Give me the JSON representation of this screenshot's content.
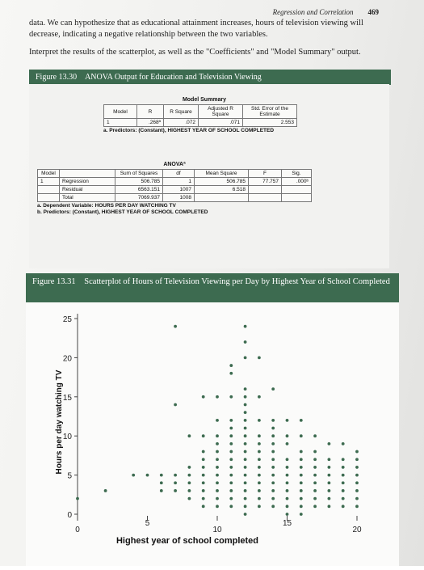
{
  "header": {
    "running_title": "Regression and Correlation",
    "page_number": "469"
  },
  "body": {
    "p1": "data. We can hypothesize that as educational attainment increases, hours of television viewing will decrease, indicating a negative relationship between the two variables.",
    "p2": "Interpret the results of the scatterplot, as well as the \"Coefficients\" and \"Model Summary\" output."
  },
  "figure1": {
    "label": "Figure 13.30",
    "caption": "ANOVA Output for Education and Television Viewing"
  },
  "model_summary": {
    "title": "Model Summary",
    "headers": [
      "Model",
      "R",
      "R Square",
      "Adjusted R Square",
      "Std. Error of the Estimate"
    ],
    "row": [
      "1",
      ".268ª",
      ".072",
      ".071",
      "2.553"
    ],
    "footnote": "a. Predictors: (Constant), HIGHEST YEAR OF SCHOOL COMPLETED"
  },
  "anova": {
    "title": "ANOVAª",
    "headers": [
      "Model",
      "",
      "Sum of Squares",
      "df",
      "Mean Square",
      "F",
      "Sig."
    ],
    "rows": [
      [
        "1",
        "Regression",
        "506.785",
        "1",
        "506.785",
        "77.757",
        ".000ᵇ"
      ],
      [
        "",
        "Residual",
        "6563.151",
        "1007",
        "6.518",
        "",
        ""
      ],
      [
        "",
        "Total",
        "7069.937",
        "1008",
        "",
        "",
        ""
      ]
    ],
    "footnote_a": "a. Dependent Variable: HOURS PER DAY WATCHING TV",
    "footnote_b": "b. Predictors: (Constant), HIGHEST YEAR OF SCHOOL COMPLETED"
  },
  "figure2": {
    "label": "Figure 13.31",
    "caption": "Scatterplot of Hours of Television Viewing per Day by Highest Year of School Completed"
  },
  "chart_data": {
    "type": "scatter",
    "title": "",
    "xlabel": "Highest year of school completed",
    "ylabel": "Hours per day watching TV",
    "xlim": [
      0,
      20
    ],
    "ylim": [
      0,
      25
    ],
    "x_ticks": [
      0,
      5,
      10,
      15,
      20
    ],
    "y_ticks": [
      0,
      5,
      10,
      15,
      20,
      25
    ],
    "grid": false,
    "point_color": "#3d6b50",
    "points": [
      [
        0,
        2
      ],
      [
        2,
        3
      ],
      [
        4,
        5
      ],
      [
        5,
        5
      ],
      [
        6,
        3
      ],
      [
        6,
        4
      ],
      [
        6,
        5
      ],
      [
        7,
        14
      ],
      [
        7,
        24
      ],
      [
        7,
        3
      ],
      [
        7,
        4
      ],
      [
        7,
        5
      ],
      [
        8,
        2
      ],
      [
        8,
        3
      ],
      [
        8,
        4
      ],
      [
        8,
        5
      ],
      [
        8,
        6
      ],
      [
        8,
        10
      ],
      [
        9,
        1
      ],
      [
        9,
        2
      ],
      [
        9,
        3
      ],
      [
        9,
        4
      ],
      [
        9,
        5
      ],
      [
        9,
        6
      ],
      [
        9,
        7
      ],
      [
        9,
        8
      ],
      [
        9,
        10
      ],
      [
        9,
        15
      ],
      [
        10,
        1
      ],
      [
        10,
        2
      ],
      [
        10,
        3
      ],
      [
        10,
        4
      ],
      [
        10,
        5
      ],
      [
        10,
        6
      ],
      [
        10,
        7
      ],
      [
        10,
        8
      ],
      [
        10,
        9
      ],
      [
        10,
        10
      ],
      [
        10,
        12
      ],
      [
        10,
        15
      ],
      [
        11,
        1
      ],
      [
        11,
        2
      ],
      [
        11,
        3
      ],
      [
        11,
        4
      ],
      [
        11,
        5
      ],
      [
        11,
        6
      ],
      [
        11,
        7
      ],
      [
        11,
        8
      ],
      [
        11,
        9
      ],
      [
        11,
        10
      ],
      [
        11,
        11
      ],
      [
        11,
        12
      ],
      [
        11,
        15
      ],
      [
        11,
        18
      ],
      [
        11,
        19
      ],
      [
        12,
        0
      ],
      [
        12,
        1
      ],
      [
        12,
        2
      ],
      [
        12,
        3
      ],
      [
        12,
        4
      ],
      [
        12,
        5
      ],
      [
        12,
        6
      ],
      [
        12,
        7
      ],
      [
        12,
        8
      ],
      [
        12,
        9
      ],
      [
        12,
        10
      ],
      [
        12,
        11
      ],
      [
        12,
        12
      ],
      [
        12,
        13
      ],
      [
        12,
        14
      ],
      [
        12,
        15
      ],
      [
        12,
        16
      ],
      [
        12,
        20
      ],
      [
        12,
        22
      ],
      [
        12,
        24
      ],
      [
        13,
        1
      ],
      [
        13,
        2
      ],
      [
        13,
        3
      ],
      [
        13,
        4
      ],
      [
        13,
        5
      ],
      [
        13,
        6
      ],
      [
        13,
        7
      ],
      [
        13,
        8
      ],
      [
        13,
        9
      ],
      [
        13,
        10
      ],
      [
        13,
        12
      ],
      [
        13,
        15
      ],
      [
        13,
        20
      ],
      [
        14,
        1
      ],
      [
        14,
        2
      ],
      [
        14,
        3
      ],
      [
        14,
        4
      ],
      [
        14,
        5
      ],
      [
        14,
        6
      ],
      [
        14,
        7
      ],
      [
        14,
        8
      ],
      [
        14,
        9
      ],
      [
        14,
        10
      ],
      [
        14,
        11
      ],
      [
        14,
        12
      ],
      [
        14,
        16
      ],
      [
        15,
        0
      ],
      [
        15,
        1
      ],
      [
        15,
        2
      ],
      [
        15,
        3
      ],
      [
        15,
        4
      ],
      [
        15,
        5
      ],
      [
        15,
        6
      ],
      [
        15,
        7
      ],
      [
        15,
        9
      ],
      [
        15,
        10
      ],
      [
        15,
        12
      ],
      [
        16,
        0
      ],
      [
        16,
        1
      ],
      [
        16,
        2
      ],
      [
        16,
        3
      ],
      [
        16,
        4
      ],
      [
        16,
        5
      ],
      [
        16,
        6
      ],
      [
        16,
        7
      ],
      [
        16,
        8
      ],
      [
        16,
        10
      ],
      [
        16,
        12
      ],
      [
        17,
        1
      ],
      [
        17,
        2
      ],
      [
        17,
        3
      ],
      [
        17,
        4
      ],
      [
        17,
        5
      ],
      [
        17,
        6
      ],
      [
        17,
        7
      ],
      [
        17,
        8
      ],
      [
        17,
        10
      ],
      [
        18,
        1
      ],
      [
        18,
        2
      ],
      [
        18,
        3
      ],
      [
        18,
        4
      ],
      [
        18,
        5
      ],
      [
        18,
        6
      ],
      [
        18,
        7
      ],
      [
        18,
        9
      ],
      [
        19,
        1
      ],
      [
        19,
        2
      ],
      [
        19,
        3
      ],
      [
        19,
        4
      ],
      [
        19,
        5
      ],
      [
        19,
        6
      ],
      [
        19,
        7
      ],
      [
        19,
        9
      ],
      [
        20,
        1
      ],
      [
        20,
        2
      ],
      [
        20,
        3
      ],
      [
        20,
        4
      ],
      [
        20,
        5
      ],
      [
        20,
        6
      ],
      [
        20,
        7
      ],
      [
        20,
        8
      ]
    ]
  }
}
